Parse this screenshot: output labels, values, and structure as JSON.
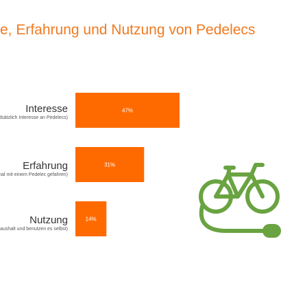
{
  "title": "e, Erfahrung und Nutzung von Pedelecs",
  "colors": {
    "accent": "#f07a20",
    "bar": "#ff6a00",
    "icon": "#6aa342"
  },
  "rows": [
    {
      "label": "Interesse",
      "sub": "dsätzlich Interesse an Pedelecs)"
    },
    {
      "label": "Erfahrung",
      "sub": "mal mit einem Pedelec gefahren)"
    },
    {
      "label": "Nutzung",
      "sub": "Haushalt und benutzen es selbst)"
    }
  ],
  "chart_data": {
    "type": "bar",
    "orientation": "horizontal",
    "categories": [
      "Interesse",
      "Erfahrung",
      "Nutzung"
    ],
    "values": [
      47,
      31,
      14
    ],
    "value_labels": [
      "47%",
      "31%",
      "14%"
    ],
    "unit": "%",
    "grid": false
  },
  "icon": {
    "name": "e-bike-icon"
  }
}
